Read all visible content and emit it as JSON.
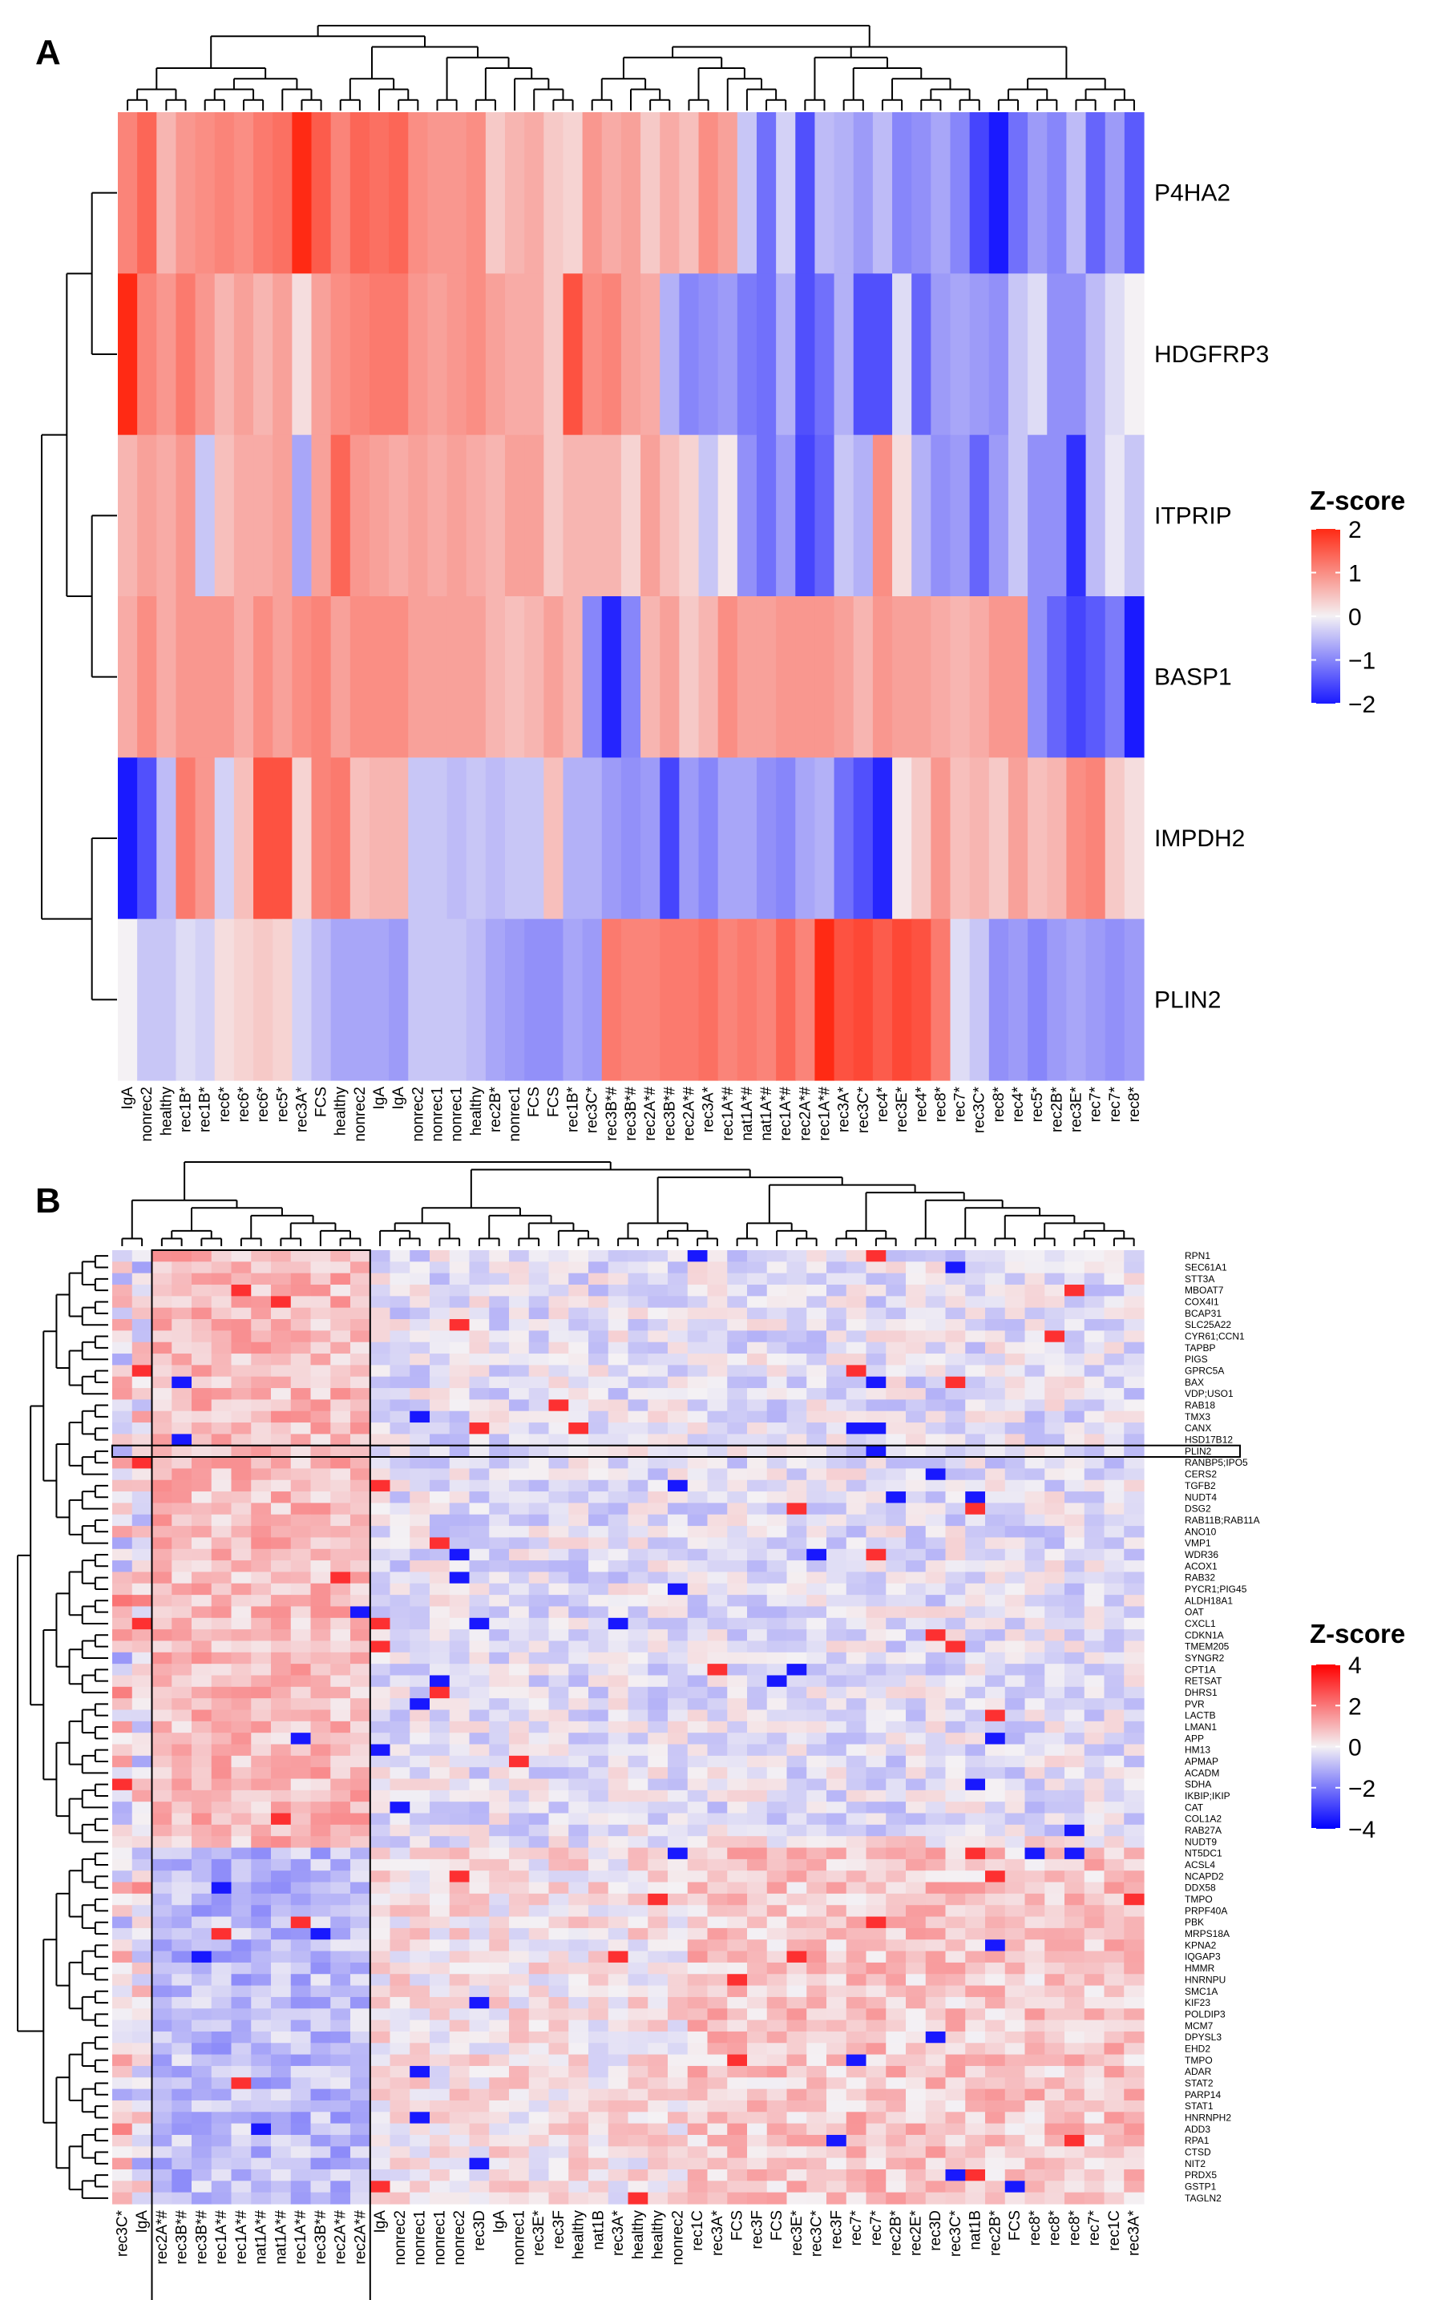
{
  "chart_data": [
    {
      "type": "heatmap",
      "panel_label": "A",
      "value_name": "Z-score",
      "color_scale": {
        "low": "#1a1aff",
        "mid": "#f4f1f4",
        "high": "#ff2a14",
        "min": -2,
        "max": 2
      },
      "legend": {
        "title": "Z-score",
        "ticks": [
          "2",
          "1",
          "0",
          "−1",
          "−2"
        ],
        "tick_values": [
          2,
          1,
          0,
          -1,
          -2
        ],
        "min": -2,
        "max": 2,
        "placement": "right"
      },
      "rows": [
        "P4HA2",
        "HDGFRP3",
        "ITPRIP",
        "BASP1",
        "IMPDH2",
        "PLIN2"
      ],
      "columns": [
        "IgA",
        "nonrec2",
        "healthy",
        "rec1B*",
        "rec1B*",
        "rec6*",
        "rec6*",
        "rec6*",
        "rec5*",
        "rec3A*",
        "FCS",
        "healthy",
        "nonrec2",
        "IgA",
        "IgA",
        "nonrec2",
        "nonrec1",
        "nonrec1",
        "healthy",
        "rec2B*",
        "nonrec1",
        "FCS",
        "FCS",
        "rec1B*",
        "rec3C*",
        "rec3B*#",
        "rec3B*#",
        "rec2A*#",
        "rec3B*#",
        "rec2A*#",
        "rec3A*",
        "rec1A*#",
        "nat1A*#",
        "nat1A*#",
        "rec1A*#",
        "rec2A*#",
        "rec1A*#",
        "rec3A*",
        "rec3C*",
        "rec4*",
        "rec3E*",
        "rec4*",
        "rec8*",
        "rec7*",
        "rec3C*",
        "rec8*",
        "rec4*",
        "rec5*",
        "rec2B*",
        "rec3E*",
        "rec7*",
        "rec7*",
        "rec8*"
      ],
      "values": [
        [
          1.1,
          1.4,
          0.6,
          0.9,
          1.0,
          1.1,
          1.0,
          1.2,
          1.3,
          2.0,
          1.5,
          1.1,
          1.4,
          1.3,
          1.4,
          1.0,
          0.9,
          0.9,
          1.0,
          0.4,
          0.6,
          0.7,
          0.4,
          0.3,
          0.9,
          0.7,
          0.8,
          0.4,
          0.7,
          0.5,
          1.0,
          0.8,
          -0.4,
          -1.2,
          -0.3,
          -1.5,
          -0.5,
          -0.6,
          -0.8,
          -0.5,
          -1.0,
          -0.9,
          -0.7,
          -1.0,
          -1.6,
          -2.0,
          -1.2,
          -0.8,
          -1.0,
          -0.5,
          -1.3,
          -0.8,
          -1.4
        ],
        [
          2.0,
          1.1,
          0.9,
          1.2,
          0.9,
          0.6,
          0.8,
          0.6,
          0.8,
          0.2,
          0.8,
          1.0,
          1.1,
          1.2,
          1.2,
          0.9,
          0.8,
          0.9,
          1.0,
          0.8,
          0.7,
          0.7,
          0.4,
          1.6,
          1.0,
          1.1,
          0.8,
          0.7,
          -0.6,
          -1.0,
          -0.9,
          -0.8,
          -1.1,
          -1.2,
          -0.6,
          -1.5,
          -1.2,
          -0.6,
          -1.5,
          -1.5,
          -0.2,
          -1.3,
          -0.8,
          -0.7,
          -0.8,
          -0.9,
          -0.4,
          -0.2,
          -0.9,
          -0.9,
          -0.5,
          -0.2,
          0.0
        ],
        [
          0.6,
          0.8,
          0.7,
          0.9,
          -0.4,
          0.5,
          0.7,
          0.7,
          0.8,
          -0.7,
          0.8,
          1.4,
          0.9,
          0.8,
          0.7,
          0.8,
          0.7,
          0.8,
          0.7,
          0.6,
          0.8,
          0.8,
          0.4,
          0.6,
          0.6,
          0.6,
          0.3,
          0.8,
          0.5,
          0.3,
          -0.4,
          0.1,
          -0.9,
          -1.2,
          -0.8,
          -1.6,
          -1.3,
          -0.4,
          -0.6,
          1.0,
          0.2,
          -0.6,
          -0.9,
          -0.8,
          -1.3,
          -0.8,
          -0.4,
          -0.9,
          -0.9,
          -1.8,
          -0.5,
          -0.1,
          -0.4
        ],
        [
          0.7,
          1.0,
          0.7,
          0.9,
          0.9,
          0.9,
          0.7,
          1.0,
          0.8,
          1.0,
          1.1,
          0.8,
          1.0,
          1.0,
          1.0,
          0.8,
          0.8,
          0.8,
          0.8,
          0.6,
          0.5,
          0.6,
          0.8,
          0.6,
          -1.0,
          -1.9,
          -1.0,
          0.6,
          0.8,
          0.4,
          0.6,
          1.0,
          0.8,
          0.8,
          0.9,
          0.9,
          0.9,
          0.8,
          0.6,
          0.9,
          0.8,
          0.8,
          0.7,
          0.6,
          0.7,
          0.9,
          0.9,
          -0.9,
          -1.3,
          -1.6,
          -1.4,
          -1.1,
          -2.2
        ],
        [
          -2.3,
          -1.5,
          -0.5,
          1.2,
          0.9,
          -0.3,
          0.5,
          1.6,
          1.6,
          0.3,
          1.1,
          1.2,
          0.5,
          0.6,
          0.6,
          -0.4,
          -0.4,
          -0.5,
          -0.4,
          -0.5,
          -0.4,
          -0.4,
          0.5,
          -0.6,
          -0.6,
          -0.8,
          -0.9,
          -0.8,
          -1.6,
          -0.8,
          -1.0,
          -0.7,
          -0.7,
          -0.9,
          -1.0,
          -0.7,
          -0.6,
          -1.2,
          -1.5,
          -1.9,
          0.1,
          0.4,
          0.9,
          0.5,
          0.6,
          0.4,
          0.8,
          0.5,
          0.6,
          1.0,
          1.1,
          0.4,
          0.2
        ],
        [
          0.0,
          -0.4,
          -0.4,
          -0.2,
          -0.3,
          0.2,
          0.3,
          0.4,
          0.3,
          -0.3,
          -0.5,
          -0.7,
          -0.7,
          -0.7,
          -0.8,
          -0.4,
          -0.4,
          -0.4,
          -0.5,
          -0.7,
          -0.8,
          -0.9,
          -0.9,
          -0.7,
          -0.8,
          1.2,
          1.1,
          1.1,
          1.2,
          1.2,
          1.3,
          1.1,
          1.2,
          1.1,
          1.4,
          1.1,
          2.3,
          1.6,
          1.7,
          1.5,
          1.7,
          1.6,
          1.2,
          -0.2,
          -0.4,
          -0.9,
          -0.8,
          -1.0,
          -0.8,
          -0.7,
          -0.8,
          -0.9,
          -0.8
        ]
      ]
    },
    {
      "type": "heatmap",
      "panel_label": "B",
      "value_name": "Z-score",
      "color_scale": {
        "low": "#0000ff",
        "mid": "#f4f1f4",
        "high": "#ff0000",
        "min": -4,
        "max": 4
      },
      "legend": {
        "title": "Z-score",
        "ticks": [
          "4",
          "2",
          "0",
          "−2",
          "−4"
        ],
        "tick_values": [
          4,
          2,
          0,
          -2,
          -4
        ],
        "min": -4,
        "max": 4,
        "placement": "right"
      },
      "rows": [
        "RPN1",
        "SEC61A1",
        "STT3A",
        "MBOAT7",
        "COX4I1",
        "BCAP31",
        "SLC25A22",
        "CYR61;CCN1",
        "TAPBP",
        "PIGS",
        "GPRC5A",
        "BAX",
        "VDP;USO1",
        "RAB18",
        "TMX3",
        "CANX",
        "HSD17B12",
        "PLIN2",
        "RANBP5;IPO5",
        "CERS2",
        "TGFB2",
        "NUDT4",
        "DSG2",
        "RAB11B;RAB11A",
        "ANO10",
        "VMP1",
        "WDR36",
        "ACOX1",
        "RAB32",
        "PYCR1;PIG45",
        "ALDH18A1",
        "OAT",
        "CXCL1",
        "CDKN1A",
        "TMEM205",
        "SYNGR2",
        "CPT1A",
        "RETSAT",
        "DHRS1",
        "PVR",
        "LACTB",
        "LMAN1",
        "APP",
        "HM13",
        "APMAP",
        "ACADM",
        "SDHA",
        "IKBIP;IKIP",
        "CAT",
        "COL1A2",
        "RAB27A",
        "NUDT9",
        "NT5DC1",
        "ACSL4",
        "NCAPD2",
        "DDX58",
        "TMPO",
        "PRPF40A",
        "PBK",
        "MRPS18A",
        "KPNA2",
        "IQGAP3",
        "HMMR",
        "HNRNPU",
        "SMC1A",
        "KIF23",
        "POLDIP3",
        "MCM7",
        "DPYSL3",
        "EHD2",
        "TMPO",
        "ADAR",
        "STAT2",
        "PARP14",
        "STAT1",
        "HNRNPH2",
        "ADD3",
        "RPA1",
        "CTSD",
        "NIT2",
        "PRDX5",
        "GSTP1",
        "TAGLN2"
      ],
      "columns": [
        "rec3C*",
        "IgA",
        "rec2A*#",
        "rec3B*#",
        "rec3B*#",
        "rec1A*#",
        "rec1A*#",
        "nat1A*#",
        "nat1A*#",
        "rec1A*#",
        "rec3B*#",
        "rec2A*#",
        "rec2A*#",
        "IgA",
        "nonrec2",
        "nonrec1",
        "nonrec1",
        "nonrec2",
        "rec3D",
        "IgA",
        "nonrec1",
        "rec3E*",
        "rec3F",
        "healthy",
        "nat1B",
        "rec3A*",
        "healthy",
        "healthy",
        "nonrec2",
        "rec1C",
        "rec3A*",
        "FCS",
        "rec3F",
        "FCS",
        "rec3E*",
        "rec3C*",
        "rec3F",
        "rec7*",
        "rec7*",
        "rec2B*",
        "rec2E*",
        "rec3D",
        "rec3C*",
        "nat1B",
        "rec2B*",
        "FCS",
        "rec8*",
        "rec8*",
        "rec8*",
        "rec7*",
        "rec1C",
        "rec3A*"
      ],
      "highlight_row": "PLIN2",
      "highlight_columns": [
        "rec2A*#",
        "rec3B*#",
        "rec3B*#",
        "rec1A*#",
        "rec1A*#",
        "nat1A*#",
        "nat1A*#",
        "rec1A*#",
        "rec3B*#",
        "rec2A*#",
        "rec2A*#"
      ]
    }
  ]
}
